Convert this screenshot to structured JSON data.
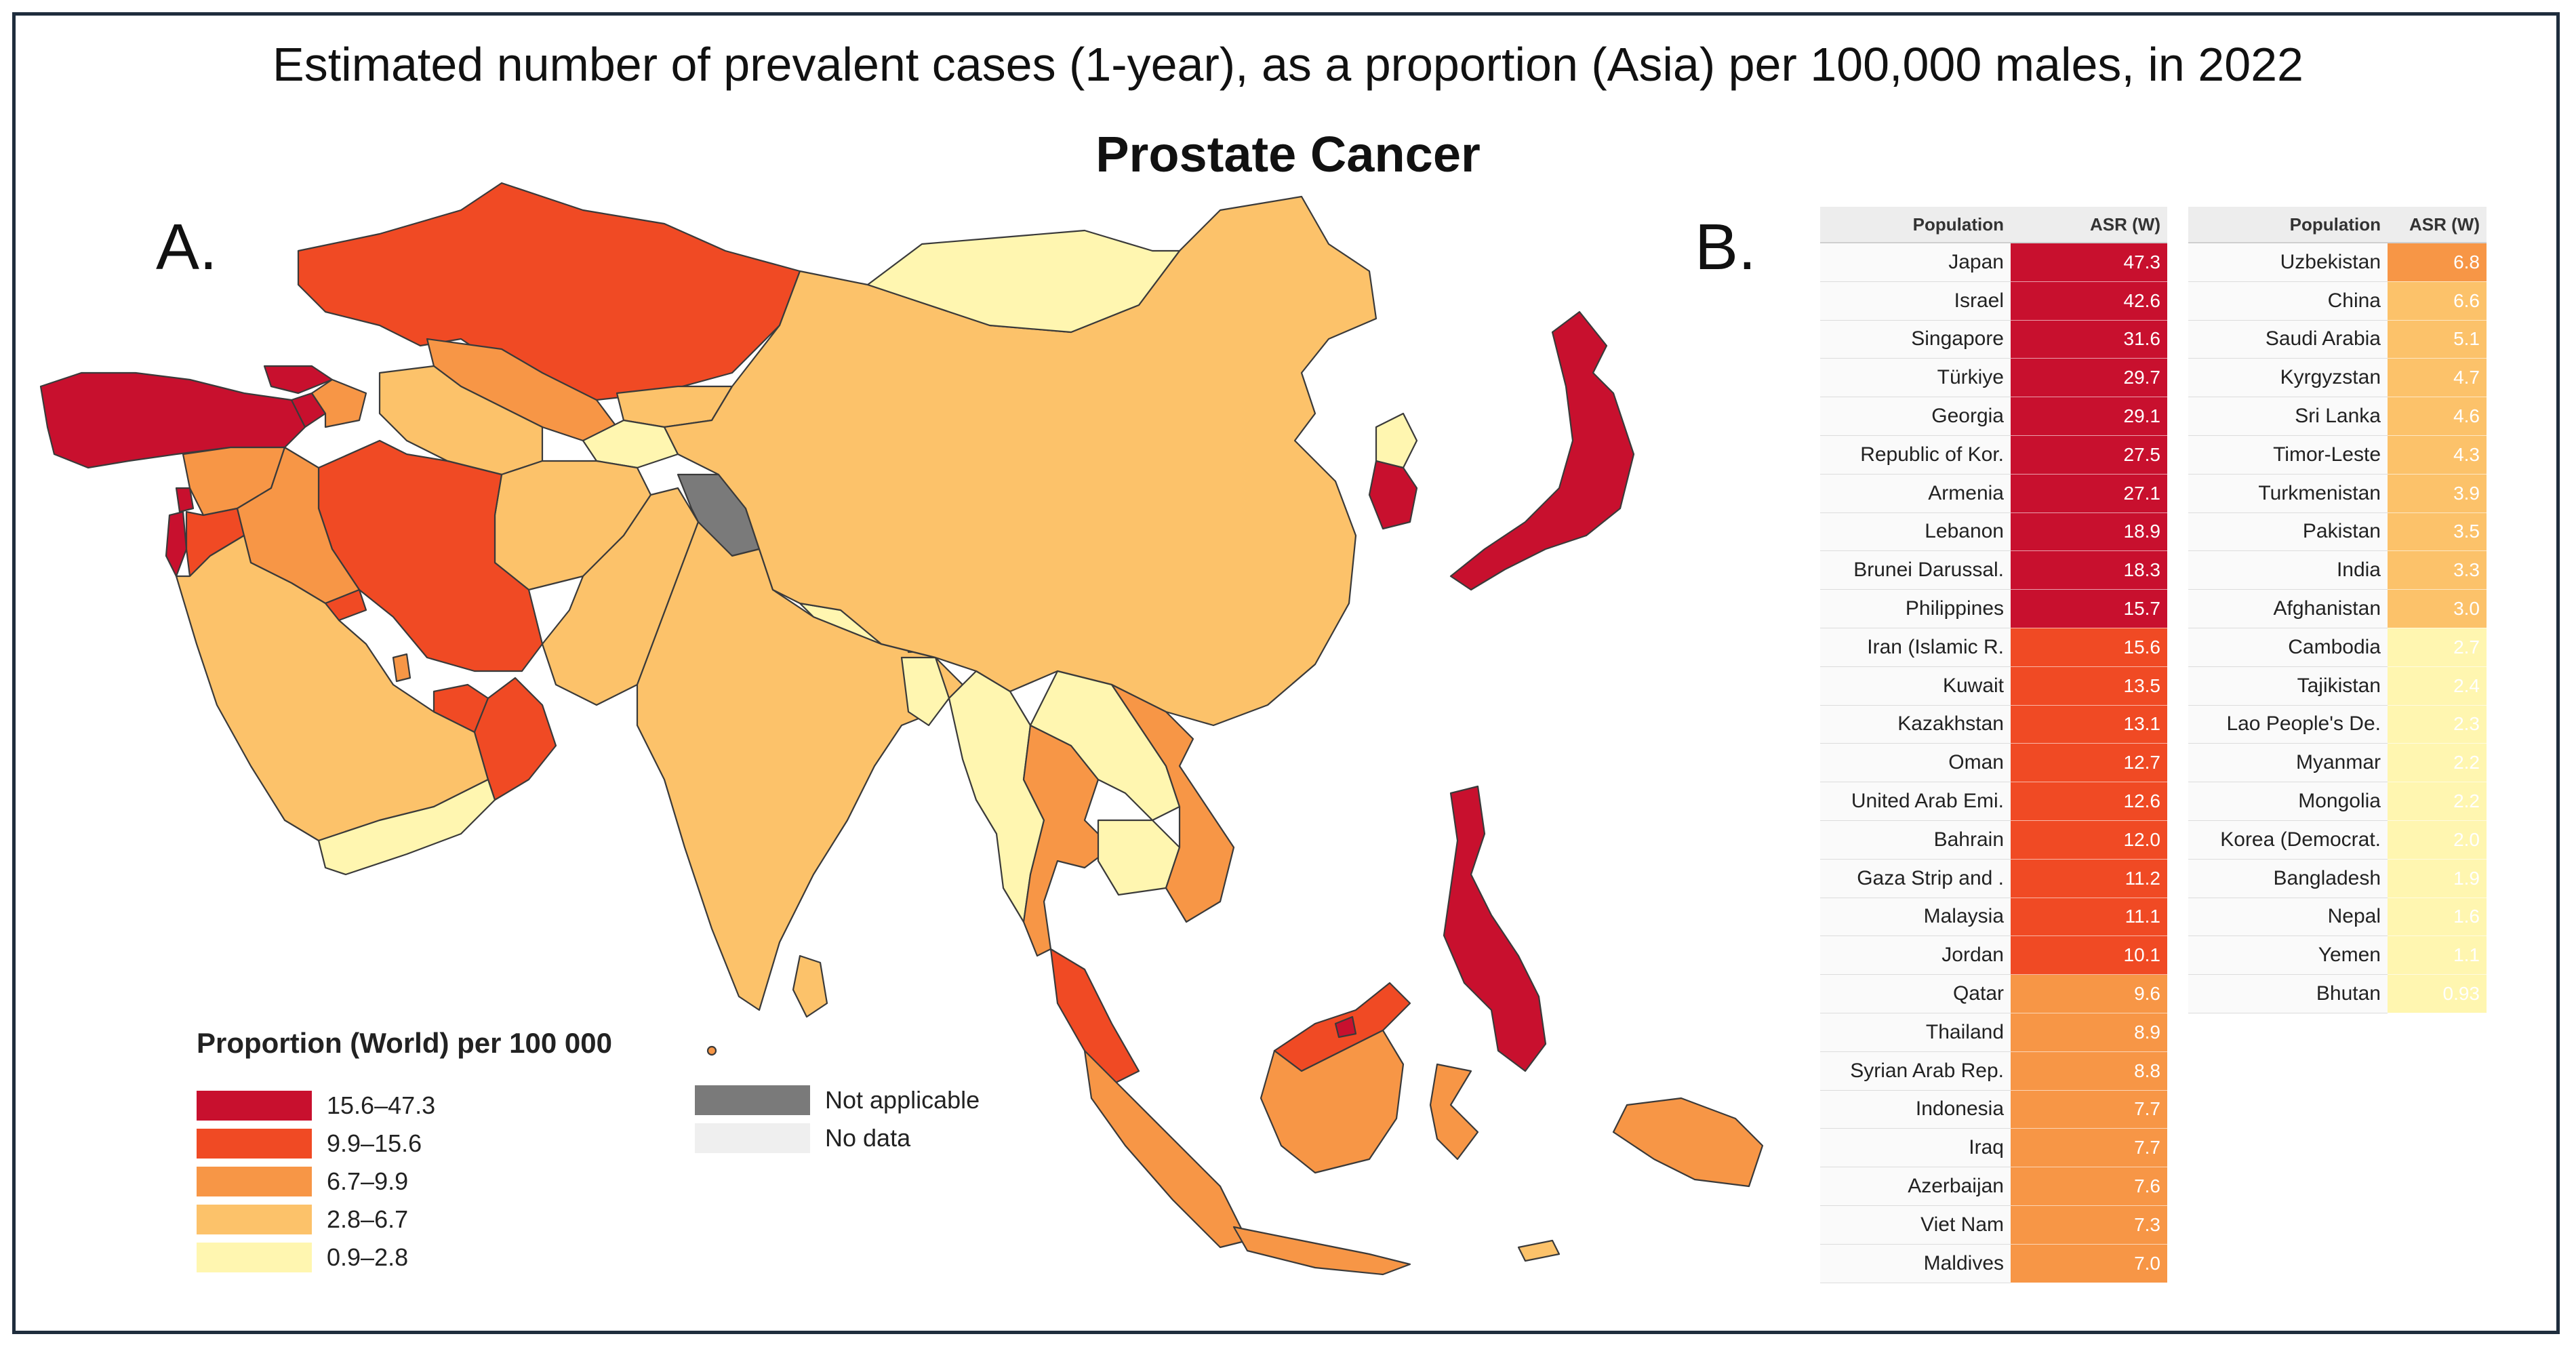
{
  "title": "Estimated number of prevalent cases (1-year), as a proportion (Asia) per 100,000 males, in 2022",
  "subtitle": "Prostate Cancer",
  "panel_a": "A.",
  "panel_b": "B.",
  "legend": {
    "title": "Proportion (World) per 100 000",
    "bins": [
      {
        "label": "15.6–47.3",
        "color": "#c8102e"
      },
      {
        "label": "9.9–15.6",
        "color": "#f04a24"
      },
      {
        "label": "6.7–9.9",
        "color": "#f79646"
      },
      {
        "label": "2.8–6.7",
        "color": "#fcc26a"
      },
      {
        "label": "0.9–2.8",
        "color": "#fff6b0"
      }
    ],
    "other": [
      {
        "label": "Not applicable",
        "color": "#7a7a7a"
      },
      {
        "label": "No data",
        "color": "#efefef"
      }
    ]
  },
  "table": {
    "header_population": "Population",
    "header_value": "ASR (W)",
    "left": [
      {
        "name": "Japan",
        "value": "47.3",
        "color": "#c8102e"
      },
      {
        "name": "Israel",
        "value": "42.6",
        "color": "#c8102e"
      },
      {
        "name": "Singapore",
        "value": "31.6",
        "color": "#c8102e"
      },
      {
        "name": "Türkiye",
        "value": "29.7",
        "color": "#c8102e"
      },
      {
        "name": "Georgia",
        "value": "29.1",
        "color": "#c8102e"
      },
      {
        "name": "Republic of Kor.",
        "value": "27.5",
        "color": "#c8102e"
      },
      {
        "name": "Armenia",
        "value": "27.1",
        "color": "#c8102e"
      },
      {
        "name": "Lebanon",
        "value": "18.9",
        "color": "#c8102e"
      },
      {
        "name": "Brunei Darussal.",
        "value": "18.3",
        "color": "#c8102e"
      },
      {
        "name": "Philippines",
        "value": "15.7",
        "color": "#c8102e"
      },
      {
        "name": "Iran (Islamic R.",
        "value": "15.6",
        "color": "#f04a24"
      },
      {
        "name": "Kuwait",
        "value": "13.5",
        "color": "#f04a24"
      },
      {
        "name": "Kazakhstan",
        "value": "13.1",
        "color": "#f04a24"
      },
      {
        "name": "Oman",
        "value": "12.7",
        "color": "#f04a24"
      },
      {
        "name": "United Arab Emi.",
        "value": "12.6",
        "color": "#f04a24"
      },
      {
        "name": "Bahrain",
        "value": "12.0",
        "color": "#f04a24"
      },
      {
        "name": "Gaza Strip and .",
        "value": "11.2",
        "color": "#f04a24"
      },
      {
        "name": "Malaysia",
        "value": "11.1",
        "color": "#f04a24"
      },
      {
        "name": "Jordan",
        "value": "10.1",
        "color": "#f04a24"
      },
      {
        "name": "Qatar",
        "value": "9.6",
        "color": "#f79646"
      },
      {
        "name": "Thailand",
        "value": "8.9",
        "color": "#f79646"
      },
      {
        "name": "Syrian Arab Rep.",
        "value": "8.8",
        "color": "#f79646"
      },
      {
        "name": "Indonesia",
        "value": "7.7",
        "color": "#f79646"
      },
      {
        "name": "Iraq",
        "value": "7.7",
        "color": "#f79646"
      },
      {
        "name": "Azerbaijan",
        "value": "7.6",
        "color": "#f79646"
      },
      {
        "name": "Viet Nam",
        "value": "7.3",
        "color": "#f79646"
      },
      {
        "name": "Maldives",
        "value": "7.0",
        "color": "#f79646"
      }
    ],
    "right": [
      {
        "name": "Uzbekistan",
        "value": "6.8",
        "color": "#f79646"
      },
      {
        "name": "China",
        "value": "6.6",
        "color": "#fcc26a"
      },
      {
        "name": "Saudi Arabia",
        "value": "5.1",
        "color": "#fcc26a"
      },
      {
        "name": "Kyrgyzstan",
        "value": "4.7",
        "color": "#fcc26a"
      },
      {
        "name": "Sri Lanka",
        "value": "4.6",
        "color": "#fcc26a"
      },
      {
        "name": "Timor-Leste",
        "value": "4.3",
        "color": "#fcc26a"
      },
      {
        "name": "Turkmenistan",
        "value": "3.9",
        "color": "#fcc26a"
      },
      {
        "name": "Pakistan",
        "value": "3.5",
        "color": "#fcc26a"
      },
      {
        "name": "India",
        "value": "3.3",
        "color": "#fcc26a"
      },
      {
        "name": "Afghanistan",
        "value": "3.0",
        "color": "#fcc26a"
      },
      {
        "name": "Cambodia",
        "value": "2.7",
        "color": "#fff6b0"
      },
      {
        "name": "Tajikistan",
        "value": "2.4",
        "color": "#fff6b0"
      },
      {
        "name": "Lao People's De.",
        "value": "2.3",
        "color": "#fff6b0"
      },
      {
        "name": "Myanmar",
        "value": "2.2",
        "color": "#fff6b0"
      },
      {
        "name": "Mongolia",
        "value": "2.2",
        "color": "#fff6b0"
      },
      {
        "name": "Korea (Democrat.",
        "value": "2.0",
        "color": "#fff6b0"
      },
      {
        "name": "Bangladesh",
        "value": "1.9",
        "color": "#fff6b0"
      },
      {
        "name": "Nepal",
        "value": "1.6",
        "color": "#fff6b0"
      },
      {
        "name": "Yemen",
        "value": "1.1",
        "color": "#fff6b0"
      },
      {
        "name": "Bhutan",
        "value": "0.93",
        "color": "#fff6b0"
      }
    ]
  }
}
